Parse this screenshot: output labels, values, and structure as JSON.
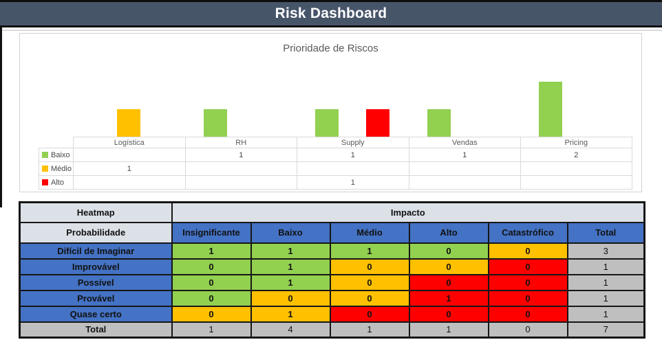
{
  "window": {
    "title": "Risk Dashboard"
  },
  "chart_data": [
    {
      "id": "priority-chart",
      "type": "bar",
      "title": "Prioridade de Riscos",
      "categories": [
        "Logística",
        "RH",
        "Supply",
        "Vendas",
        "Pricing"
      ],
      "series": [
        {
          "name": "Baixo",
          "color": "#92D050",
          "values": [
            0,
            1,
            1,
            1,
            2
          ],
          "display": [
            "",
            "1",
            "1",
            "1",
            "2"
          ]
        },
        {
          "name": "Médio",
          "color": "#FFC000",
          "values": [
            1,
            0,
            0,
            0,
            0
          ],
          "display": [
            "1",
            "",
            "",
            "",
            ""
          ]
        },
        {
          "name": "Alto",
          "color": "#FF0000",
          "values": [
            0,
            0,
            1,
            0,
            0
          ],
          "display": [
            "",
            "",
            "1",
            "",
            ""
          ]
        }
      ],
      "ylim": [
        0,
        2
      ],
      "grid": false,
      "legend_position": "left-of-data-table",
      "data_table_shown": true
    },
    {
      "id": "risk-matrix",
      "type": "heatmap",
      "corner_label": "Heatmap",
      "x_label": "Impacto",
      "y_label": "Probabilidade",
      "columns": [
        "Insignificante",
        "Baixo",
        "Médio",
        "Alto",
        "Catastrófico",
        "Total"
      ],
      "rows": [
        {
          "label": "Difícil de Imaginar",
          "values": [
            1,
            1,
            1,
            0,
            0
          ],
          "colors": [
            "green",
            "green",
            "green",
            "green",
            "yellow"
          ],
          "total": 3
        },
        {
          "label": "Improvável",
          "values": [
            0,
            1,
            0,
            0,
            0
          ],
          "colors": [
            "green",
            "green",
            "yellow",
            "yellow",
            "red"
          ],
          "total": 1
        },
        {
          "label": "Possível",
          "values": [
            0,
            1,
            0,
            0,
            0
          ],
          "colors": [
            "green",
            "green",
            "yellow",
            "red",
            "red"
          ],
          "total": 1
        },
        {
          "label": "Provável",
          "values": [
            0,
            0,
            0,
            1,
            0
          ],
          "colors": [
            "green",
            "yellow",
            "yellow",
            "red",
            "red"
          ],
          "total": 1
        },
        {
          "label": "Quase certo",
          "values": [
            0,
            1,
            0,
            0,
            0
          ],
          "colors": [
            "yellow",
            "yellow",
            "red",
            "red",
            "red"
          ],
          "total": 1
        }
      ],
      "total_row": {
        "label": "Total",
        "values": [
          1,
          4,
          1,
          1,
          0
        ],
        "total": 7
      },
      "palette": {
        "green": "#92D050",
        "yellow": "#FFC000",
        "red": "#FF0000",
        "header_blue": "#4472C4",
        "total_gray": "#BFBFBF",
        "header_light": "#DCE1E8",
        "titlebar": "#475569"
      }
    }
  ]
}
